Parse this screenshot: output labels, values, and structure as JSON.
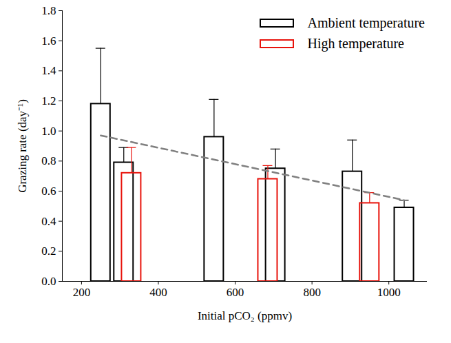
{
  "chart_data": {
    "type": "bar",
    "x_label": "Initial pCO₂ (ppmv)",
    "y_label": "Grazing rate (day⁻¹)",
    "xlim": [
      150,
      1100
    ],
    "xticks": [
      200,
      400,
      600,
      800,
      1000
    ],
    "ylim": [
      0,
      1.8
    ],
    "yticks": [
      {
        "value": 0,
        "label": "0.0"
      },
      0.2,
      0.4,
      0.6,
      0.8,
      {
        "value": 1,
        "label": "1.0"
      },
      1.2,
      1.4,
      1.6,
      1.8
    ],
    "legend": "upper right",
    "series": [
      {
        "name": "Ambient temperature",
        "color": "#000000",
        "x": [
          250,
          310,
          545,
          705,
          905,
          1040
        ],
        "values": [
          1.18,
          0.79,
          0.96,
          0.75,
          0.73,
          0.49
        ],
        "errors": [
          0.37,
          0.1,
          0.25,
          0.13,
          0.21,
          0.05
        ]
      },
      {
        "name": "High temperature",
        "color": "#e8130c",
        "x": [
          330,
          685,
          950
        ],
        "values": [
          0.72,
          0.68,
          0.52
        ],
        "errors": [
          0.17,
          0.09,
          0.07
        ]
      }
    ],
    "trend": {
      "type": "line",
      "x": [
        250,
        1040
      ],
      "values": [
        0.97,
        0.54
      ],
      "color": "#808080",
      "line_style": "dashed"
    }
  }
}
